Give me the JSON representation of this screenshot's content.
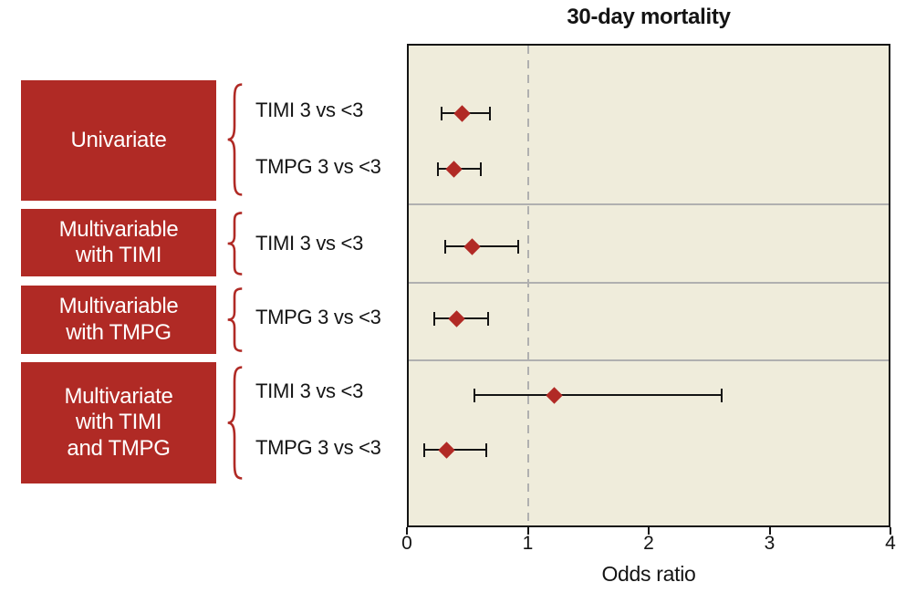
{
  "chart_data": {
    "type": "scatter",
    "subtype": "forest-plot",
    "title": "30-day mortality",
    "xlabel": "Odds ratio",
    "xlim": [
      0,
      4
    ],
    "xticks": [
      "0",
      "1",
      "2",
      "3",
      "4"
    ],
    "reference_line_x": 1,
    "grid": false,
    "legend": "none",
    "groups": [
      {
        "label": "Univariate",
        "label_lines": [
          "Univariate"
        ],
        "rows": [
          {
            "label": "TIMI 3 vs <3",
            "or": 0.46,
            "ci_low": 0.29,
            "ci_high": 0.69
          },
          {
            "label": "TMPG 3 vs <3",
            "or": 0.39,
            "ci_low": 0.26,
            "ci_high": 0.61
          }
        ]
      },
      {
        "label": "Multivariable with TIMI",
        "label_lines": [
          "Multivariable",
          "with TIMI"
        ],
        "rows": [
          {
            "label": "TIMI 3 vs <3",
            "or": 0.54,
            "ci_low": 0.32,
            "ci_high": 0.92
          }
        ]
      },
      {
        "label": "Multivariable with TMPG",
        "label_lines": [
          "Multivariable",
          "with TMPG"
        ],
        "rows": [
          {
            "label": "TMPG 3 vs <3",
            "or": 0.41,
            "ci_low": 0.23,
            "ci_high": 0.67
          }
        ]
      },
      {
        "label": "Multivariate with TIMI and TMPG",
        "label_lines": [
          "Multivariate",
          "with TIMI",
          "and TMPG"
        ],
        "rows": [
          {
            "label": "TIMI 3 vs <3",
            "or": 1.22,
            "ci_low": 0.56,
            "ci_high": 2.6
          },
          {
            "label": "TMPG 3 vs <3",
            "or": 0.33,
            "ci_low": 0.14,
            "ci_high": 0.66
          }
        ]
      }
    ],
    "colors": {
      "accent_red": "#b02a25",
      "marker": "#b12a25",
      "plot_background": "#efecdb",
      "reference_line": "#b0b0b0",
      "separator": "#b0b0b0",
      "axis_line": "#141414",
      "error_bar": "#141414",
      "box_text": "#ffffff",
      "text": "#141414"
    }
  }
}
